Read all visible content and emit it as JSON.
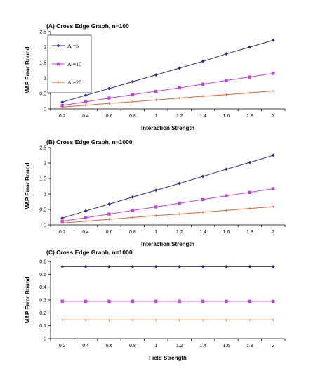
{
  "chart_data": [
    {
      "type": "line",
      "title": "(A) Cross Edge Graph, n=100",
      "xlabel": "Interaction Strength",
      "ylabel": "MAP Error Bound",
      "x": [
        0.2,
        0.4,
        0.6,
        0.8,
        1,
        1.2,
        1.4,
        1.6,
        1.8,
        2
      ],
      "x_tick_labels": [
        "0.2",
        "0.4",
        "0.6",
        "0.8",
        "1",
        "1.2",
        "1.4",
        "1.6",
        "1.8",
        "2"
      ],
      "ylim": [
        0,
        2.5
      ],
      "y_ticks": [
        0,
        0.5,
        1,
        1.5,
        2,
        2.5
      ],
      "y_tick_labels": [
        "0",
        "0.5",
        "1",
        "1.5",
        "2",
        "2.5"
      ],
      "grid": false,
      "legend": "top-left",
      "series": [
        {
          "name": "Λ =5",
          "color": "#2a2a8c",
          "values": [
            0.22,
            0.44,
            0.66,
            0.88,
            1.1,
            1.32,
            1.54,
            1.78,
            2.0,
            2.22
          ]
        },
        {
          "name": "Λ =10",
          "color": "#c040e0",
          "values": [
            0.11,
            0.23,
            0.35,
            0.46,
            0.57,
            0.68,
            0.8,
            0.92,
            1.03,
            1.15
          ]
        },
        {
          "name": "Λ =20",
          "color": "#f05a28",
          "values": [
            0.06,
            0.12,
            0.18,
            0.23,
            0.29,
            0.35,
            0.41,
            0.46,
            0.52,
            0.58
          ]
        }
      ]
    },
    {
      "type": "line",
      "title": "(B) Cross Edge Graph, n=1000",
      "xlabel": "Interaction Strength",
      "ylabel": "MAP Error Bound",
      "x": [
        0.2,
        0.4,
        0.6,
        0.8,
        1,
        1.2,
        1.4,
        1.6,
        1.8,
        2
      ],
      "x_tick_labels": [
        "0.2",
        "0.4",
        "0.6",
        "0.8",
        "1",
        "1.2",
        "1.4",
        "1.6",
        "1.8",
        "2"
      ],
      "ylim": [
        0,
        2.5
      ],
      "y_ticks": [
        0,
        0.5,
        1,
        1.5,
        2,
        2.5
      ],
      "y_tick_labels": [
        "0",
        "0.5",
        "1",
        "1.5",
        "2",
        "2.5"
      ],
      "grid": false,
      "series": [
        {
          "color": "#2a2a8c",
          "values": [
            0.22,
            0.45,
            0.67,
            0.9,
            1.12,
            1.34,
            1.57,
            1.8,
            2.02,
            2.25
          ]
        },
        {
          "color": "#c040e0",
          "values": [
            0.12,
            0.23,
            0.35,
            0.47,
            0.58,
            0.7,
            0.82,
            0.94,
            1.05,
            1.17
          ]
        },
        {
          "color": "#f05a28",
          "values": [
            0.06,
            0.12,
            0.18,
            0.24,
            0.3,
            0.35,
            0.41,
            0.47,
            0.53,
            0.59
          ]
        }
      ]
    },
    {
      "type": "line",
      "title": "(C) Cross Edge Graph, n=1000",
      "xlabel": "Field Strength",
      "ylabel": "MAP Error Bound",
      "x": [
        0.2,
        0.4,
        0.6,
        0.8,
        1,
        1.2,
        1.4,
        1.6,
        1.8,
        2
      ],
      "x_tick_labels": [
        "0.2",
        "0.4",
        "0.6",
        "0.8",
        "1",
        "1.2",
        "1.4",
        "1.6",
        "1.8",
        "2"
      ],
      "ylim": [
        0,
        0.6
      ],
      "y_ticks": [
        0,
        0.1,
        0.2,
        0.3,
        0.4,
        0.5,
        0.6
      ],
      "y_tick_labels": [
        "0",
        "0.1",
        "0.2",
        "0.3",
        "0.4",
        "0.5",
        "0.6"
      ],
      "grid": false,
      "series": [
        {
          "color": "#2a2a8c",
          "values": [
            0.56,
            0.56,
            0.56,
            0.56,
            0.56,
            0.56,
            0.56,
            0.56,
            0.56,
            0.56
          ]
        },
        {
          "color": "#c040e0",
          "values": [
            0.29,
            0.29,
            0.29,
            0.29,
            0.29,
            0.29,
            0.29,
            0.29,
            0.29,
            0.29
          ]
        },
        {
          "color": "#f05a28",
          "values": [
            0.145,
            0.145,
            0.145,
            0.145,
            0.145,
            0.145,
            0.145,
            0.145,
            0.145,
            0.145
          ]
        }
      ]
    }
  ]
}
